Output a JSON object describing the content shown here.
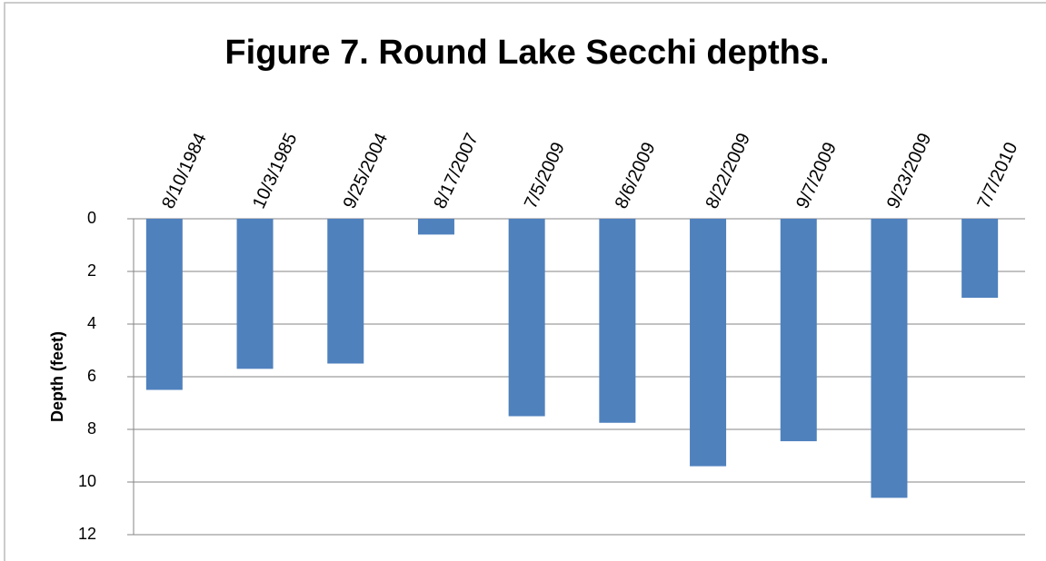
{
  "chart_data": {
    "type": "bar",
    "title": "Figure 7. Round Lake Secchi depths.",
    "y_label": "Depth (feet)",
    "categories": [
      "8/10/1984",
      "10/3/1985",
      "9/25/2004",
      "8/17/2007",
      "7/5/2009",
      "8/6/2009",
      "8/22/2009",
      "9/7/2009",
      "9/23/2009",
      "7/7/2010"
    ],
    "values": [
      6.5,
      5.7,
      5.5,
      0.6,
      7.5,
      7.75,
      9.4,
      8.45,
      10.6,
      3.0
    ],
    "color": "#4f81bd",
    "ylim": [
      0,
      12
    ],
    "y_inverted": true,
    "yticks": [
      0,
      2,
      4,
      6,
      8,
      10,
      12
    ],
    "grid": true
  }
}
